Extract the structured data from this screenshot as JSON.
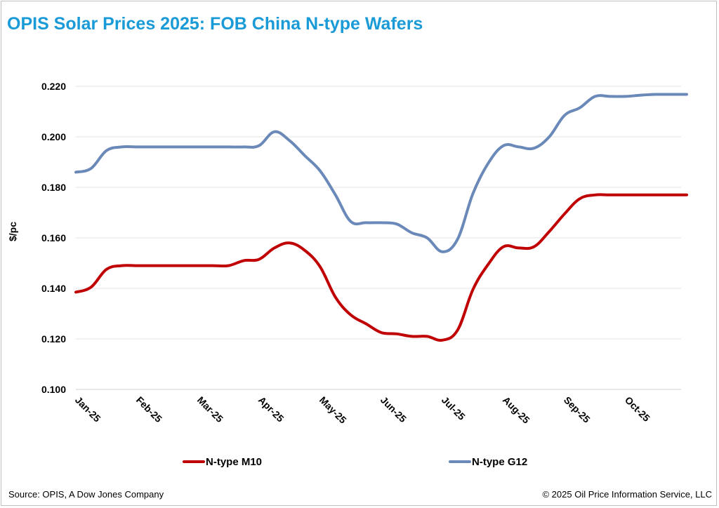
{
  "title": "OPIS Solar Prices 2025: FOB China N-type Wafers",
  "source": "Source: OPIS, A Dow Jones Company",
  "copyright": "© 2025 Oil Price Information  Service, LLC",
  "chart_data": {
    "type": "line",
    "title": "OPIS Solar Prices 2025: FOB China N-type Wafers",
    "xlabel": "",
    "ylabel": "$/pc",
    "ylim": [
      0.1,
      0.22
    ],
    "yticks": [
      "0.100",
      "0.120",
      "0.140",
      "0.160",
      "0.180",
      "0.200",
      "0.220"
    ],
    "grid": "horizontal",
    "legend_position": "bottom",
    "categories": [
      "Jan-25",
      "Feb-25",
      "Mar-25",
      "Apr-25",
      "May-25",
      "Jun-25",
      "Jul-25",
      "Aug-25",
      "Sep-25",
      "Oct-25"
    ],
    "x": [
      0,
      0.25,
      0.5,
      0.75,
      1,
      1.25,
      1.5,
      1.75,
      2,
      2.25,
      2.5,
      2.75,
      3,
      3.25,
      3.5,
      3.75,
      4,
      4.25,
      4.5,
      4.75,
      5,
      5.25,
      5.5,
      5.75,
      6,
      6.25,
      6.5,
      6.75,
      7,
      7.25,
      7.5,
      7.75,
      8,
      8.25,
      8.5,
      8.75,
      9,
      9.25,
      9.5,
      9.75,
      10
    ],
    "series": [
      {
        "name": "N-type M10",
        "color": "#c00000",
        "values": [
          0.1385,
          0.1405,
          0.1475,
          0.149,
          0.149,
          0.149,
          0.149,
          0.149,
          0.149,
          0.149,
          0.149,
          0.151,
          0.1515,
          0.156,
          0.158,
          0.155,
          0.1485,
          0.1365,
          0.1295,
          0.126,
          0.1225,
          0.122,
          0.121,
          0.121,
          0.1195,
          0.1235,
          0.1395,
          0.1495,
          0.1565,
          0.156,
          0.1565,
          0.1625,
          0.1695,
          0.1755,
          0.177,
          0.177,
          0.177,
          0.177,
          0.177,
          0.177,
          0.177
        ]
      },
      {
        "name": "N-type G12",
        "color": "#6a89b8",
        "values": [
          0.186,
          0.1875,
          0.1945,
          0.196,
          0.196,
          0.196,
          0.196,
          0.196,
          0.196,
          0.196,
          0.196,
          0.196,
          0.1965,
          0.202,
          0.1985,
          0.1925,
          0.1865,
          0.177,
          0.1665,
          0.166,
          0.166,
          0.1655,
          0.162,
          0.16,
          0.1545,
          0.1595,
          0.1775,
          0.1895,
          0.1965,
          0.196,
          0.1955,
          0.2,
          0.2085,
          0.2115,
          0.216,
          0.216,
          0.216,
          0.2165,
          0.2168,
          0.2168,
          0.2168
        ]
      }
    ]
  }
}
